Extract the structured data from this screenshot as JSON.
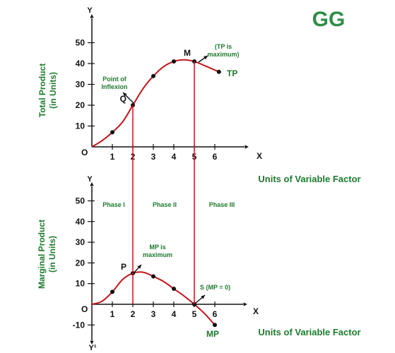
{
  "logo": {
    "text": "GG",
    "color": "#2f8d46"
  },
  "colors": {
    "curve": "#c4161c",
    "axis": "#111111",
    "label": "#1e7a2e",
    "point": "#111111"
  },
  "chart_data": [
    {
      "type": "line",
      "id": "total-product",
      "ylabel_line1": "Total Product",
      "ylabel_line2": "(in Units)",
      "x_axis_letter": "X",
      "y_axis_letter": "Y",
      "origin_label": "O",
      "xlabel": "Units of Variable Factor",
      "x_ticks": [
        "1",
        "2",
        "3",
        "4",
        "5",
        "6"
      ],
      "y_ticks": [
        "10",
        "20",
        "30",
        "40",
        "50"
      ],
      "xlim": [
        0,
        6.8
      ],
      "ylim": [
        0,
        55
      ],
      "series": [
        {
          "name": "TP",
          "x": [
            0,
            0.5,
            1,
            1.5,
            2,
            2.5,
            3,
            3.5,
            4,
            4.5,
            5,
            5.5,
            6.2
          ],
          "y": [
            0,
            3,
            7,
            12,
            20,
            28,
            34,
            38.5,
            41,
            41.8,
            41,
            39,
            36
          ]
        }
      ],
      "points": [
        {
          "x": 1,
          "y": 7
        },
        {
          "x": 2,
          "y": 20,
          "label": "Q"
        },
        {
          "x": 3,
          "y": 34
        },
        {
          "x": 4,
          "y": 41
        },
        {
          "x": 5,
          "y": 41,
          "label": "M"
        },
        {
          "x": 6.2,
          "y": 36
        }
      ],
      "annotations": {
        "inflexion": [
          "Point of",
          "Inflexion"
        ],
        "tp_max": [
          "(TP is",
          "maximum)"
        ],
        "curve_label": "TP"
      }
    },
    {
      "type": "line",
      "id": "marginal-product",
      "ylabel_line1": "Marginal Product",
      "ylabel_line2": "(in Units)",
      "x_axis_letter": "X",
      "y_axis_letter": "Y",
      "y_neg_letter": "Y¹",
      "origin_label": "O",
      "xlabel": "Units of Variable Factor",
      "x_ticks": [
        "1",
        "2",
        "3",
        "4",
        "5",
        "6"
      ],
      "y_ticks": [
        "-10",
        "10",
        "20",
        "30",
        "40",
        "50"
      ],
      "xlim": [
        0,
        6.8
      ],
      "ylim": [
        -10,
        55
      ],
      "phases": [
        "Phase I",
        "Phase II",
        "Phase III"
      ],
      "series": [
        {
          "name": "MP",
          "x": [
            0,
            0.5,
            1,
            1.5,
            2,
            2.5,
            3,
            3.5,
            4,
            4.5,
            5,
            5.5,
            6
          ],
          "y": [
            0,
            1.5,
            6,
            12,
            15,
            15.5,
            13.5,
            11,
            7.5,
            4,
            0,
            -4.5,
            -10
          ]
        }
      ],
      "points": [
        {
          "x": 1,
          "y": 6
        },
        {
          "x": 2,
          "y": 15,
          "label": "P"
        },
        {
          "x": 3,
          "y": 13.5
        },
        {
          "x": 4,
          "y": 7.5
        },
        {
          "x": 5,
          "y": 0
        },
        {
          "x": 6,
          "y": -10
        }
      ],
      "annotations": {
        "mp_max": [
          "MP is",
          "maximum"
        ],
        "zero": "S (MP = 0)",
        "curve_label": "MP"
      }
    }
  ]
}
